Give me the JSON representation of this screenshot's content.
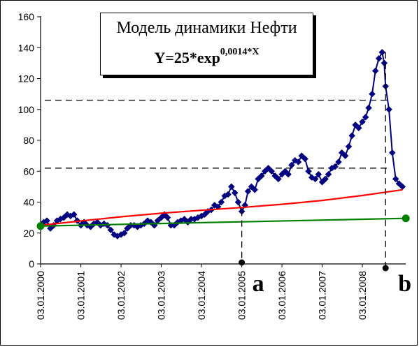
{
  "title_box": {
    "line1": "Модель динамики Нефти",
    "formula_base": "Y=25*exp",
    "formula_exp": "0,0014*X"
  },
  "chart_data": {
    "type": "line",
    "ylim": [
      0,
      160
    ],
    "yticks": [
      0,
      20,
      40,
      60,
      80,
      100,
      120,
      140,
      160
    ],
    "xlim": [
      "2000-01-03",
      "2009-05-01"
    ],
    "xticks": [
      {
        "date": "2000-01-03",
        "label": "03.01.2000"
      },
      {
        "date": "2001-01-03",
        "label": "03.01.2001"
      },
      {
        "date": "2002-01-03",
        "label": "03.01.2002"
      },
      {
        "date": "2003-01-03",
        "label": "03.01.2003"
      },
      {
        "date": "2004-01-03",
        "label": "03.01.2004"
      },
      {
        "date": "2005-01-03",
        "label": "03.01.2005"
      },
      {
        "date": "2006-01-03",
        "label": "03.01.2006"
      },
      {
        "date": "2007-01-03",
        "label": "03.01.2007"
      },
      {
        "date": "2008-01-03",
        "label": "03.01.2008"
      }
    ],
    "grid": false,
    "series": [
      {
        "kind": "price",
        "color": "#000080",
        "marker": "diamond",
        "points": [
          [
            "2000-01-03",
            25
          ],
          [
            "2000-02-01",
            27
          ],
          [
            "2000-03-01",
            28
          ],
          [
            "2000-04-01",
            23
          ],
          [
            "2000-05-01",
            25
          ],
          [
            "2000-06-01",
            28
          ],
          [
            "2000-07-01",
            29
          ],
          [
            "2000-08-01",
            30
          ],
          [
            "2000-09-01",
            32
          ],
          [
            "2000-10-01",
            31
          ],
          [
            "2000-11-01",
            32
          ],
          [
            "2000-12-01",
            28
          ],
          [
            "2001-01-03",
            25
          ],
          [
            "2001-02-01",
            27
          ],
          [
            "2001-03-01",
            25
          ],
          [
            "2001-04-01",
            24
          ],
          [
            "2001-05-01",
            26
          ],
          [
            "2001-06-01",
            27
          ],
          [
            "2001-07-01",
            25
          ],
          [
            "2001-08-01",
            26
          ],
          [
            "2001-09-01",
            25
          ],
          [
            "2001-10-01",
            22
          ],
          [
            "2001-11-01",
            19
          ],
          [
            "2001-12-01",
            18
          ],
          [
            "2002-01-03",
            19
          ],
          [
            "2002-02-01",
            20
          ],
          [
            "2002-03-01",
            23
          ],
          [
            "2002-04-01",
            25
          ],
          [
            "2002-05-01",
            25
          ],
          [
            "2002-06-01",
            24
          ],
          [
            "2002-07-01",
            25
          ],
          [
            "2002-08-01",
            26
          ],
          [
            "2002-09-01",
            28
          ],
          [
            "2002-10-01",
            27
          ],
          [
            "2002-11-01",
            25
          ],
          [
            "2002-12-01",
            28
          ],
          [
            "2003-01-03",
            30
          ],
          [
            "2003-02-01",
            32
          ],
          [
            "2003-03-01",
            30
          ],
          [
            "2003-04-01",
            25
          ],
          [
            "2003-05-01",
            25
          ],
          [
            "2003-06-01",
            27
          ],
          [
            "2003-07-01",
            28
          ],
          [
            "2003-08-01",
            29
          ],
          [
            "2003-09-01",
            27
          ],
          [
            "2003-10-01",
            29
          ],
          [
            "2003-11-01",
            29
          ],
          [
            "2003-12-01",
            30
          ],
          [
            "2004-01-03",
            31
          ],
          [
            "2004-02-01",
            32
          ],
          [
            "2004-03-01",
            34
          ],
          [
            "2004-04-01",
            35
          ],
          [
            "2004-05-01",
            38
          ],
          [
            "2004-06-01",
            37
          ],
          [
            "2004-07-01",
            40
          ],
          [
            "2004-08-01",
            44
          ],
          [
            "2004-09-01",
            45
          ],
          [
            "2004-10-01",
            50
          ],
          [
            "2004-11-01",
            46
          ],
          [
            "2004-12-01",
            40
          ],
          [
            "2005-01-03",
            34
          ],
          [
            "2005-02-01",
            38
          ],
          [
            "2005-03-01",
            47
          ],
          [
            "2005-04-01",
            50
          ],
          [
            "2005-05-01",
            48
          ],
          [
            "2005-06-01",
            55
          ],
          [
            "2005-07-01",
            57
          ],
          [
            "2005-08-01",
            60
          ],
          [
            "2005-09-01",
            62
          ],
          [
            "2005-10-01",
            60
          ],
          [
            "2005-11-01",
            57
          ],
          [
            "2005-12-01",
            55
          ],
          [
            "2006-01-03",
            58
          ],
          [
            "2006-02-01",
            60
          ],
          [
            "2006-03-01",
            58
          ],
          [
            "2006-04-01",
            64
          ],
          [
            "2006-05-01",
            67
          ],
          [
            "2006-06-01",
            66
          ],
          [
            "2006-07-01",
            70
          ],
          [
            "2006-08-01",
            68
          ],
          [
            "2006-09-01",
            60
          ],
          [
            "2006-10-01",
            56
          ],
          [
            "2006-11-01",
            55
          ],
          [
            "2006-12-01",
            58
          ],
          [
            "2007-01-03",
            53
          ],
          [
            "2007-02-01",
            55
          ],
          [
            "2007-03-01",
            58
          ],
          [
            "2007-04-01",
            62
          ],
          [
            "2007-05-01",
            63
          ],
          [
            "2007-06-01",
            66
          ],
          [
            "2007-07-01",
            72
          ],
          [
            "2007-08-01",
            70
          ],
          [
            "2007-09-01",
            76
          ],
          [
            "2007-10-01",
            83
          ],
          [
            "2007-11-01",
            90
          ],
          [
            "2007-12-01",
            88
          ],
          [
            "2008-01-03",
            92
          ],
          [
            "2008-02-01",
            95
          ],
          [
            "2008-03-01",
            101
          ],
          [
            "2008-04-01",
            110
          ],
          [
            "2008-05-01",
            125
          ],
          [
            "2008-06-01",
            133
          ],
          [
            "2008-07-01",
            137
          ],
          [
            "2008-07-20",
            130
          ],
          [
            "2008-08-01",
            115
          ],
          [
            "2008-09-01",
            100
          ],
          [
            "2008-10-01",
            72
          ],
          [
            "2008-11-01",
            55
          ],
          [
            "2008-12-01",
            52
          ],
          [
            "2009-01-01",
            50
          ]
        ]
      },
      {
        "kind": "model",
        "color": "#ff0000",
        "points": [
          [
            "2000-01-03",
            25
          ],
          [
            "2001-01-03",
            27.8
          ],
          [
            "2002-01-03",
            30.5
          ],
          [
            "2003-01-03",
            32.8
          ],
          [
            "2004-01-03",
            34.7
          ],
          [
            "2005-01-03",
            36.5
          ],
          [
            "2006-01-03",
            38.6
          ],
          [
            "2007-01-03",
            41.1
          ],
          [
            "2008-01-03",
            44.3
          ],
          [
            "2009-01-01",
            48
          ]
        ]
      },
      {
        "kind": "baseline",
        "color": "#008000",
        "points": [
          [
            "2000-01-03",
            24.5
          ],
          [
            "2009-02-01",
            29.5
          ]
        ]
      }
    ],
    "reference_lines": {
      "horizontal": [
        106,
        62
      ],
      "vertical": [
        {
          "date": "2005-01-03",
          "label": "a"
        },
        {
          "date": "2008-08-01",
          "label": "b"
        }
      ]
    }
  }
}
